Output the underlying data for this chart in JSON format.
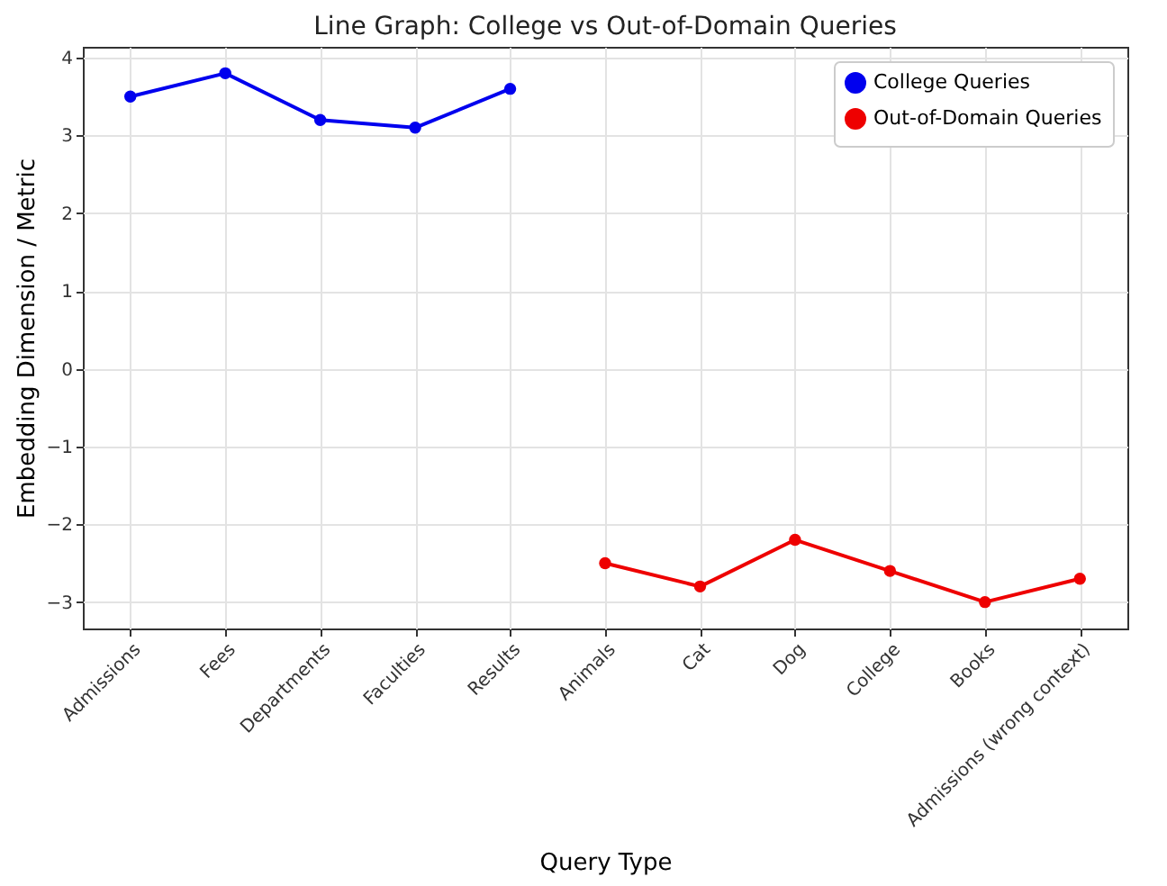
{
  "chart_data": {
    "type": "line",
    "title": "Line Graph: College vs Out-of-Domain Queries",
    "xlabel": "Query Type",
    "ylabel": "Embedding Dimension / Metric",
    "categories": [
      "Admissions",
      "Fees",
      "Departments",
      "Faculties",
      "Results",
      "Animals",
      "Cat",
      "Dog",
      "College",
      "Books",
      "Admissions (wrong context)"
    ],
    "series": [
      {
        "name": "College Queries",
        "color": "#0000ee",
        "values": [
          3.5,
          3.8,
          3.2,
          3.1,
          3.6,
          null,
          null,
          null,
          null,
          null,
          null
        ]
      },
      {
        "name": "Out-of-Domain Queries",
        "color": "#ee0000",
        "values": [
          null,
          null,
          null,
          null,
          null,
          -2.5,
          -2.8,
          -2.2,
          -2.6,
          -3.0,
          -2.7
        ]
      }
    ],
    "ylim": [
      -3.34,
      4.14
    ],
    "yticks": [
      {
        "value": -3,
        "label": "−3"
      },
      {
        "value": -2,
        "label": "−2"
      },
      {
        "value": -1,
        "label": "−1"
      },
      0,
      1,
      2,
      3,
      4
    ],
    "grid": true,
    "legend": "top right",
    "marker": "circle",
    "line_style": "solid"
  }
}
